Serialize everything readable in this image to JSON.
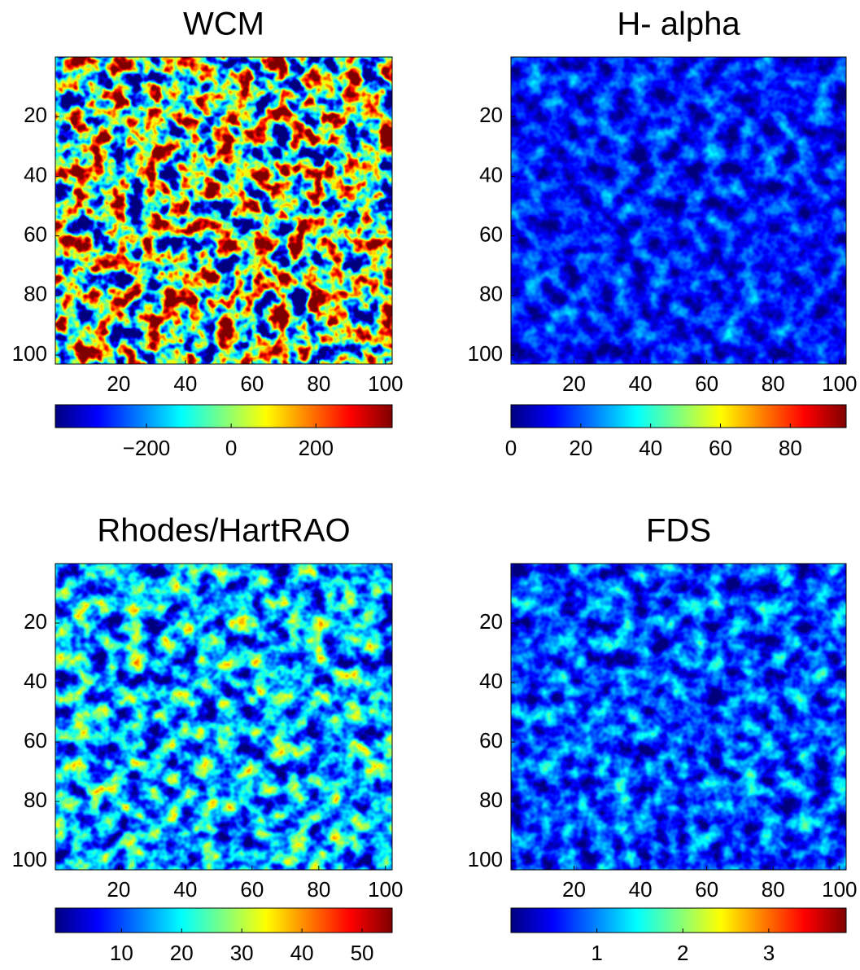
{
  "chart_data": [
    {
      "type": "image",
      "title": "WCM",
      "colormap": "jet",
      "xlim": [
        1,
        102
      ],
      "ylim": [
        0,
        103
      ],
      "xticks": [
        20,
        40,
        60,
        80,
        100
      ],
      "yticks": [
        20,
        40,
        60,
        80,
        100
      ],
      "clim": [
        -415,
        380
      ],
      "cticks": [
        {
          "value": -200,
          "label": "−200"
        },
        0,
        200
      ]
    },
    {
      "type": "image",
      "title": "H- alpha",
      "colormap": "jet",
      "xlim": [
        1,
        102
      ],
      "ylim": [
        0,
        103
      ],
      "xticks": [
        20,
        40,
        60,
        80,
        100
      ],
      "yticks": [
        20,
        40,
        60,
        80,
        100
      ],
      "clim": [
        0,
        96
      ],
      "cticks": [
        0,
        20,
        40,
        60,
        80
      ]
    },
    {
      "type": "image",
      "title": "Rhodes/HartRAO",
      "colormap": "jet",
      "xlim": [
        1,
        102
      ],
      "ylim": [
        0,
        103
      ],
      "xticks": [
        20,
        40,
        60,
        80,
        100
      ],
      "yticks": [
        20,
        40,
        60,
        80,
        100
      ],
      "clim": [
        -1,
        55
      ],
      "cticks": [
        10,
        20,
        30,
        40,
        50
      ]
    },
    {
      "type": "image",
      "title": "FDS",
      "colormap": "jet",
      "xlim": [
        1,
        102
      ],
      "ylim": [
        0,
        103
      ],
      "xticks": [
        20,
        40,
        60,
        80,
        100
      ],
      "yticks": [
        20,
        40,
        60,
        80,
        100
      ],
      "clim": [
        0,
        3.9
      ],
      "cticks": [
        1,
        2,
        3
      ]
    }
  ]
}
